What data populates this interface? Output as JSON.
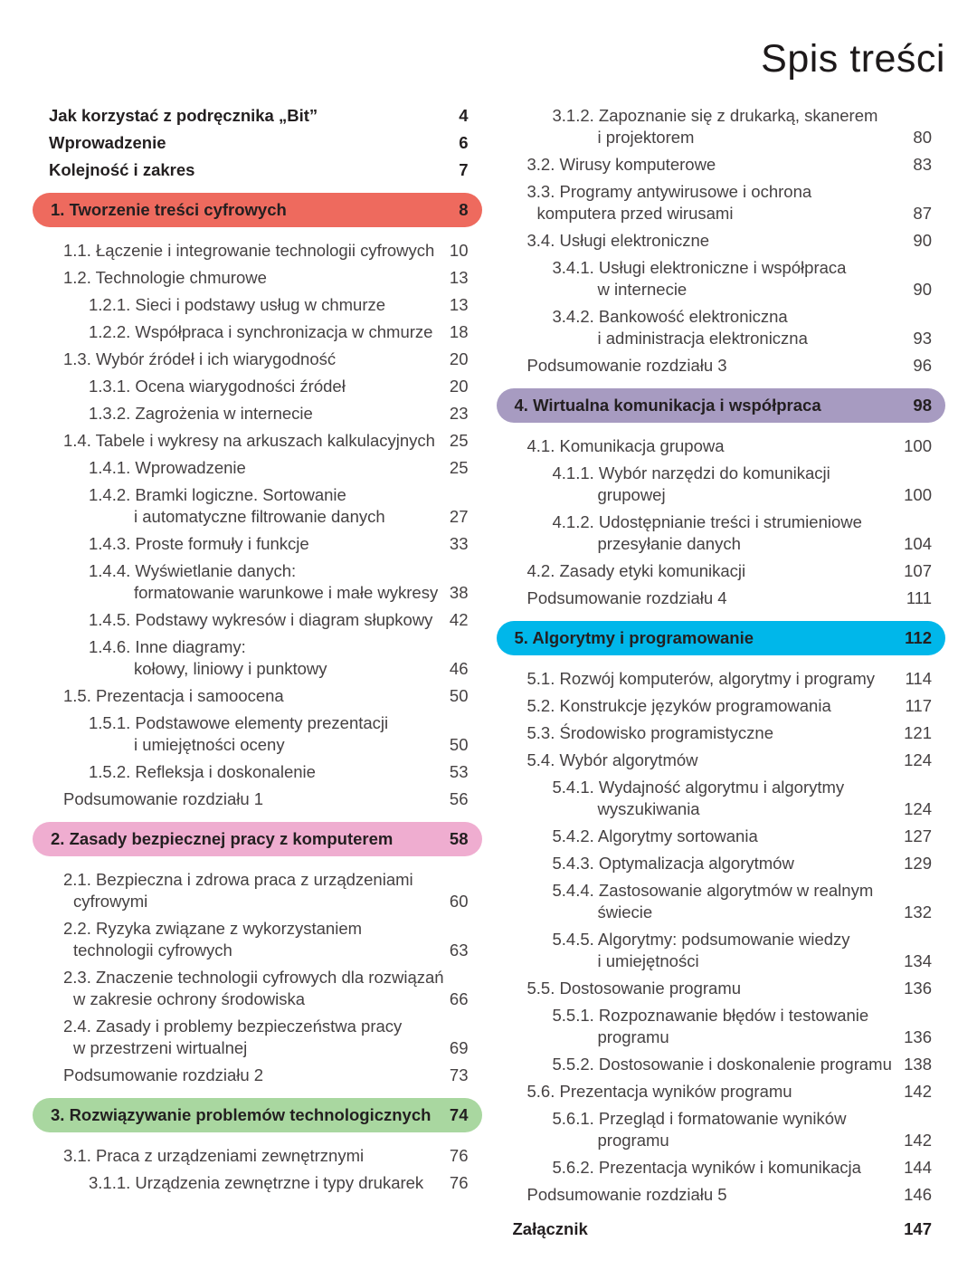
{
  "page_title": "Spis treści",
  "colors": {
    "chapter1": "#ee6a5e",
    "chapter2": "#efadd0",
    "chapter3": "#a9d7a0",
    "chapter4": "#a79bc1",
    "chapter5": "#00b7ea",
    "body_text": "#454142",
    "bold_text": "#231f20"
  },
  "columns": {
    "left": [
      {
        "type": "front",
        "lines": [
          "Jak korzystać z podręcznika „Bit”"
        ],
        "page": "4"
      },
      {
        "type": "front",
        "lines": [
          "Wprowadzenie"
        ],
        "page": "6"
      },
      {
        "type": "front",
        "lines": [
          "Kolejność i zakres"
        ],
        "page": "7"
      },
      {
        "type": "chapter",
        "color": "#ee6a5e",
        "lines": [
          "1. Tworzenie treści cyfrowych"
        ],
        "page": "8"
      },
      {
        "type": "l1",
        "lines": [
          "1.1. Łączenie i integrowanie technologii cyfrowych"
        ],
        "page": "10"
      },
      {
        "type": "l1",
        "lines": [
          "1.2. Technologie chmurowe"
        ],
        "page": "13"
      },
      {
        "type": "l2",
        "lines": [
          "1.2.1. Sieci i podstawy usług w chmurze"
        ],
        "page": "13"
      },
      {
        "type": "l2",
        "lines": [
          "1.2.2. Współpraca i synchronizacja w chmurze"
        ],
        "page": "18"
      },
      {
        "type": "l1",
        "lines": [
          "1.3. Wybór źródeł i ich wiarygodność"
        ],
        "page": "20"
      },
      {
        "type": "l2",
        "lines": [
          "1.3.1. Ocena wiarygodności źródeł"
        ],
        "page": "20"
      },
      {
        "type": "l2",
        "lines": [
          "1.3.2. Zagrożenia w internecie"
        ],
        "page": "23"
      },
      {
        "type": "l1",
        "lines": [
          "1.4. Tabele i wykresy na arkuszach kalkulacyjnych"
        ],
        "page": "25"
      },
      {
        "type": "l2",
        "lines": [
          "1.4.1. Wprowadzenie"
        ],
        "page": "25"
      },
      {
        "type": "l2",
        "lines": [
          "1.4.2. Bramki logiczne. Sortowanie",
          "i automatyczne filtrowanie danych"
        ],
        "page": "27"
      },
      {
        "type": "l2",
        "lines": [
          "1.4.3. Proste formuły i funkcje"
        ],
        "page": "33"
      },
      {
        "type": "l2",
        "lines": [
          "1.4.4. Wyświetlanie danych:",
          "formatowanie warunkowe i małe wykresy"
        ],
        "page": "38"
      },
      {
        "type": "l2",
        "lines": [
          "1.4.5. Podstawy wykresów i diagram słupkowy"
        ],
        "page": "42"
      },
      {
        "type": "l2",
        "lines": [
          "1.4.6. Inne diagramy:",
          "kołowy, liniowy i punktowy"
        ],
        "page": "46"
      },
      {
        "type": "l1",
        "lines": [
          "1.5. Prezentacja i samoocena"
        ],
        "page": "50"
      },
      {
        "type": "l2",
        "lines": [
          "1.5.1. Podstawowe elementy prezentacji",
          "i umiejętności oceny"
        ],
        "page": "50"
      },
      {
        "type": "l2",
        "lines": [
          "1.5.2. Refleksja i doskonalenie"
        ],
        "page": "53"
      },
      {
        "type": "summary",
        "lines": [
          "Podsumowanie rozdziału 1"
        ],
        "page": "56"
      },
      {
        "type": "chapter",
        "color": "#efadd0",
        "lines": [
          "2. Zasady bezpiecznej pracy z komputerem"
        ],
        "page": "58"
      },
      {
        "type": "l1",
        "lines": [
          "2.1. Bezpieczna i zdrowa praca z urządzeniami",
          "cyfrowymi"
        ],
        "page": "60"
      },
      {
        "type": "l1",
        "lines": [
          "2.2. Ryzyka związane z wykorzystaniem",
          "technologii cyfrowych"
        ],
        "page": "63"
      },
      {
        "type": "l1",
        "lines": [
          "2.3. Znaczenie technologii cyfrowych dla rozwiązań",
          "w zakresie ochrony środowiska"
        ],
        "page": "66"
      },
      {
        "type": "l1",
        "lines": [
          "2.4. Zasady i problemy bezpieczeństwa pracy",
          "w przestrzeni wirtualnej"
        ],
        "page": "69"
      },
      {
        "type": "summary",
        "lines": [
          "Podsumowanie rozdziału 2"
        ],
        "page": "73"
      },
      {
        "type": "chapter",
        "color": "#a9d7a0",
        "lines": [
          "3. Rozwiązywanie problemów technologicznych"
        ],
        "page": "74"
      },
      {
        "type": "l1",
        "lines": [
          "3.1. Praca z urządzeniami zewnętrznymi"
        ],
        "page": "76"
      },
      {
        "type": "l2",
        "lines": [
          "3.1.1. Urządzenia zewnętrzne i typy drukarek"
        ],
        "page": "76"
      }
    ],
    "right": [
      {
        "type": "l2",
        "lines": [
          "3.1.2. Zapoznanie się z drukarką, skanerem",
          "i projektorem"
        ],
        "page": "80"
      },
      {
        "type": "l1",
        "lines": [
          "3.2. Wirusy komputerowe"
        ],
        "page": "83"
      },
      {
        "type": "l1",
        "lines": [
          "3.3. Programy antywirusowe i ochrona",
          "komputera przed wirusami"
        ],
        "page": "87"
      },
      {
        "type": "l1",
        "lines": [
          "3.4. Usługi elektroniczne"
        ],
        "page": "90"
      },
      {
        "type": "l2",
        "lines": [
          "3.4.1. Usługi elektroniczne i współpraca",
          "w internecie"
        ],
        "page": "90"
      },
      {
        "type": "l2",
        "lines": [
          "3.4.2. Bankowość elektroniczna",
          "i administracja elektroniczna"
        ],
        "page": "93"
      },
      {
        "type": "summary",
        "lines": [
          "Podsumowanie rozdziału 3"
        ],
        "page": "96"
      },
      {
        "type": "chapter",
        "color": "#a79bc1",
        "lines": [
          "4. Wirtualna komunikacja i współpraca"
        ],
        "page": "98"
      },
      {
        "type": "l1",
        "lines": [
          "4.1. Komunikacja grupowa"
        ],
        "page": "100"
      },
      {
        "type": "l2",
        "lines": [
          "4.1.1. Wybór narzędzi do komunikacji",
          "grupowej"
        ],
        "page": "100"
      },
      {
        "type": "l2",
        "lines": [
          "4.1.2. Udostępnianie treści i strumieniowe",
          "przesyłanie danych"
        ],
        "page": "104"
      },
      {
        "type": "l1",
        "lines": [
          "4.2. Zasady etyki komunikacji"
        ],
        "page": "107"
      },
      {
        "type": "summary",
        "lines": [
          "Podsumowanie rozdziału 4"
        ],
        "page": "111"
      },
      {
        "type": "chapter",
        "color": "#00b7ea",
        "lines": [
          "5. Algorytmy i programowanie"
        ],
        "page": "112"
      },
      {
        "type": "l1",
        "lines": [
          "5.1. Rozwój komputerów, algorytmy i programy"
        ],
        "page": "114"
      },
      {
        "type": "l1",
        "lines": [
          "5.2. Konstrukcje języków programowania"
        ],
        "page": "117"
      },
      {
        "type": "l1",
        "lines": [
          "5.3. Środowisko programistyczne"
        ],
        "page": "121"
      },
      {
        "type": "l1",
        "lines": [
          "5.4. Wybór algorytmów"
        ],
        "page": "124"
      },
      {
        "type": "l2",
        "lines": [
          "5.4.1. Wydajność algorytmu i algorytmy",
          "wyszukiwania"
        ],
        "page": "124"
      },
      {
        "type": "l2",
        "lines": [
          "5.4.2. Algorytmy sortowania"
        ],
        "page": "127"
      },
      {
        "type": "l2",
        "lines": [
          "5.4.3. Optymalizacja algorytmów"
        ],
        "page": "129"
      },
      {
        "type": "l2",
        "lines": [
          "5.4.4. Zastosowanie algorytmów w realnym",
          "świecie"
        ],
        "page": "132"
      },
      {
        "type": "l2",
        "lines": [
          "5.4.5. Algorytmy: podsumowanie wiedzy",
          "i umiejętności"
        ],
        "page": "134"
      },
      {
        "type": "l1",
        "lines": [
          "5.5. Dostosowanie programu"
        ],
        "page": "136"
      },
      {
        "type": "l2",
        "lines": [
          "5.5.1. Rozpoznawanie błędów i testowanie",
          "programu"
        ],
        "page": "136"
      },
      {
        "type": "l2",
        "lines": [
          "5.5.2. Dostosowanie i doskonalenie programu"
        ],
        "page": "138"
      },
      {
        "type": "l1",
        "lines": [
          "5.6. Prezentacja wyników programu"
        ],
        "page": "142"
      },
      {
        "type": "l2",
        "lines": [
          "5.6.1. Przegląd i formatowanie wyników",
          "programu"
        ],
        "page": "142"
      },
      {
        "type": "l2",
        "lines": [
          "5.6.2. Prezentacja wyników i komunikacja"
        ],
        "page": "144"
      },
      {
        "type": "summary",
        "lines": [
          "Podsumowanie rozdziału 5"
        ],
        "page": "146"
      },
      {
        "type": "annex",
        "lines": [
          "Załącznik"
        ],
        "page": "147"
      }
    ]
  }
}
